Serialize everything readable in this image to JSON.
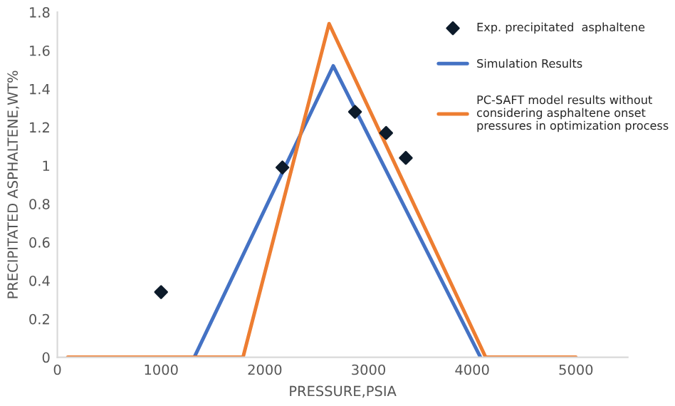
{
  "chart_data": {
    "type": "line",
    "xlabel": "PRESSURE,PSIA",
    "ylabel": "PRECIPITATED ASPHALTENE,WT%",
    "xlim": [
      0,
      5500
    ],
    "xticks": [
      0,
      1000,
      2000,
      3000,
      4000,
      5000
    ],
    "ylim": [
      0,
      1.8
    ],
    "yticks": [
      0,
      0.2,
      0.4,
      0.6,
      0.8,
      1,
      1.2,
      1.4,
      1.6,
      1.8
    ],
    "grid": false,
    "legend": "top right",
    "series": [
      {
        "type": "scatter",
        "name": "Exp. precipitated  asphaltene",
        "color": "#0d1b2a",
        "marker": "diamond",
        "x": [
          1000,
          2170,
          2870,
          3170,
          3360
        ],
        "values": [
          0.34,
          0.99,
          1.28,
          1.17,
          1.04
        ]
      },
      {
        "name": "Simulation Results",
        "color": "#4472c4",
        "x": [
          1320,
          2660,
          4080
        ],
        "values": [
          0,
          1.52,
          0
        ]
      },
      {
        "name": "PC-SAFT model results without\nconsidering asphaltene onset\npressures in optimization process",
        "color": "#ed7d31",
        "x": [
          100,
          1790,
          2620,
          4130,
          5000
        ],
        "values": [
          0,
          0,
          1.74,
          0,
          0
        ]
      }
    ]
  }
}
